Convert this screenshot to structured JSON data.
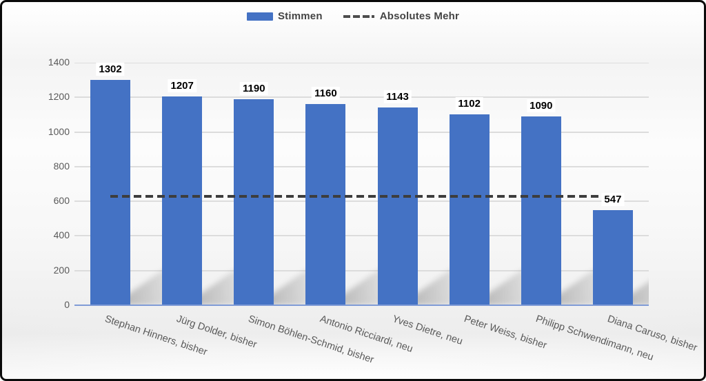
{
  "chart_data": {
    "type": "bar",
    "title": "",
    "categories": [
      "Stephan Hinners, bisher",
      "Jürg Dolder, bisher",
      "Simon Böhlen-Schmid, bisher",
      "Antonio Ricciardi, neu",
      "Yves Dietre, neu",
      "Peter Weiss, bisher",
      "Philipp Schwendimann, neu",
      "Diana Caruso, bisher"
    ],
    "series": [
      {
        "name": "Stimmen",
        "type": "bar",
        "color": "#4472C4",
        "values": [
          1302,
          1207,
          1190,
          1160,
          1143,
          1102,
          1090,
          547
        ],
        "data_labels": [
          "1302",
          "1207",
          "1190",
          "1160",
          "1143",
          "1102",
          "1090",
          "547"
        ]
      },
      {
        "name": "Absolutes Mehr",
        "type": "line",
        "line_style": "dashed",
        "color": "#3d3d3d",
        "value": 630
      }
    ],
    "xlabel": "",
    "ylabel": "",
    "ylim": [
      0,
      1400
    ],
    "yticks": [
      0,
      200,
      400,
      600,
      800,
      1000,
      1200,
      1400
    ],
    "grid": true,
    "legend_position": "top",
    "category_label_rotation_deg": 18.5,
    "colors": {
      "bar": "#4472C4",
      "dashed_line": "#3d3d3d",
      "gridline": "#dcdcdc",
      "axis_line": "#7f9bd6",
      "tick_label": "#595959",
      "data_label": "#000000",
      "legend_text": "#444444",
      "frame_border": "#0a0a0a"
    }
  }
}
